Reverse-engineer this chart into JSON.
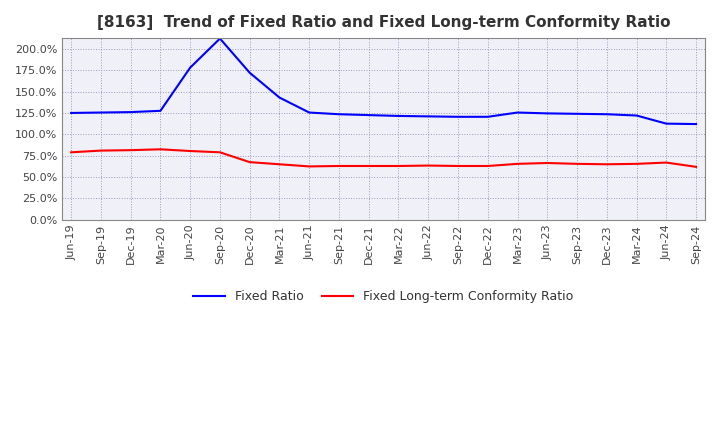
{
  "title": "[8163]  Trend of Fixed Ratio and Fixed Long-term Conformity Ratio",
  "x_labels": [
    "Jun-19",
    "Sep-19",
    "Dec-19",
    "Mar-20",
    "Jun-20",
    "Sep-20",
    "Dec-20",
    "Mar-21",
    "Jun-21",
    "Sep-21",
    "Dec-21",
    "Mar-22",
    "Jun-22",
    "Sep-22",
    "Dec-22",
    "Mar-23",
    "Jun-23",
    "Sep-23",
    "Dec-23",
    "Mar-24",
    "Jun-24",
    "Sep-24"
  ],
  "fixed_ratio": [
    125.0,
    125.5,
    126.0,
    127.5,
    178.0,
    212.0,
    172.0,
    143.0,
    125.5,
    123.5,
    122.5,
    121.5,
    121.0,
    120.5,
    120.5,
    125.5,
    124.5,
    124.0,
    123.5,
    122.0,
    112.5,
    112.0
  ],
  "fixed_lt_ratio": [
    79.0,
    81.0,
    81.5,
    82.5,
    80.5,
    79.0,
    67.5,
    65.0,
    62.5,
    63.0,
    63.0,
    63.0,
    63.5,
    63.0,
    63.0,
    65.5,
    66.5,
    65.5,
    65.0,
    65.5,
    67.0,
    62.0
  ],
  "ylim": [
    0.0,
    212.5
  ],
  "yticks": [
    0,
    25,
    50,
    75,
    100,
    125,
    150,
    175,
    200
  ],
  "blue_color": "#0000FF",
  "red_color": "#FF0000",
  "grid_color": "#9999BB",
  "bg_color": "#F0F0F8",
  "fig_bg_color": "#FFFFFF",
  "title_fontsize": 11,
  "tick_fontsize": 8,
  "legend_labels": [
    "Fixed Ratio",
    "Fixed Long-term Conformity Ratio"
  ],
  "line_width": 1.5
}
